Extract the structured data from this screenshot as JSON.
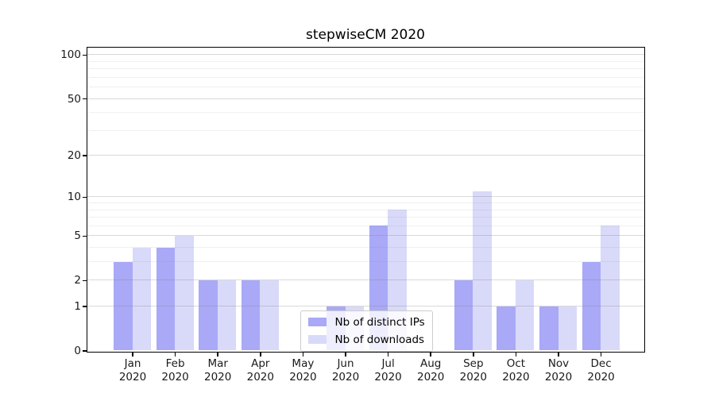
{
  "chart_data": {
    "type": "bar",
    "title": "stepwiseCM 2020",
    "categories": [
      "Jan 2020",
      "Feb 2020",
      "Mar 2020",
      "Apr 2020",
      "May 2020",
      "Jun 2020",
      "Jul 2020",
      "Aug 2020",
      "Sep 2020",
      "Oct 2020",
      "Nov 2020",
      "Dec 2020"
    ],
    "x_tick_months": [
      "Jan",
      "Feb",
      "Mar",
      "Apr",
      "May",
      "Jun",
      "Jul",
      "Aug",
      "Sep",
      "Oct",
      "Nov",
      "Dec"
    ],
    "x_tick_year": "2020",
    "series": [
      {
        "name": "Nb of distinct IPs",
        "color": "#a9a9f7",
        "values": [
          3,
          4,
          2,
          2,
          0,
          1,
          6,
          0,
          2,
          1,
          1,
          3
        ]
      },
      {
        "name": "Nb of downloads",
        "color": "#d9d9f9",
        "values": [
          4,
          5,
          2,
          2,
          0,
          1,
          8,
          0,
          11,
          2,
          1,
          6
        ]
      }
    ],
    "xlabel": "",
    "ylabel": "",
    "y_axis": {
      "scale": "log10(1+value)",
      "major_ticks": [
        0,
        1,
        2,
        5,
        10,
        20,
        50,
        100
      ],
      "minor_gridlines": [
        3,
        4,
        6,
        7,
        8,
        9,
        30,
        40,
        60,
        70,
        80,
        90
      ],
      "ylim": [
        0,
        113
      ]
    },
    "grid": "horizontal",
    "legend": {
      "position": "bottom-center",
      "frame": true
    }
  }
}
